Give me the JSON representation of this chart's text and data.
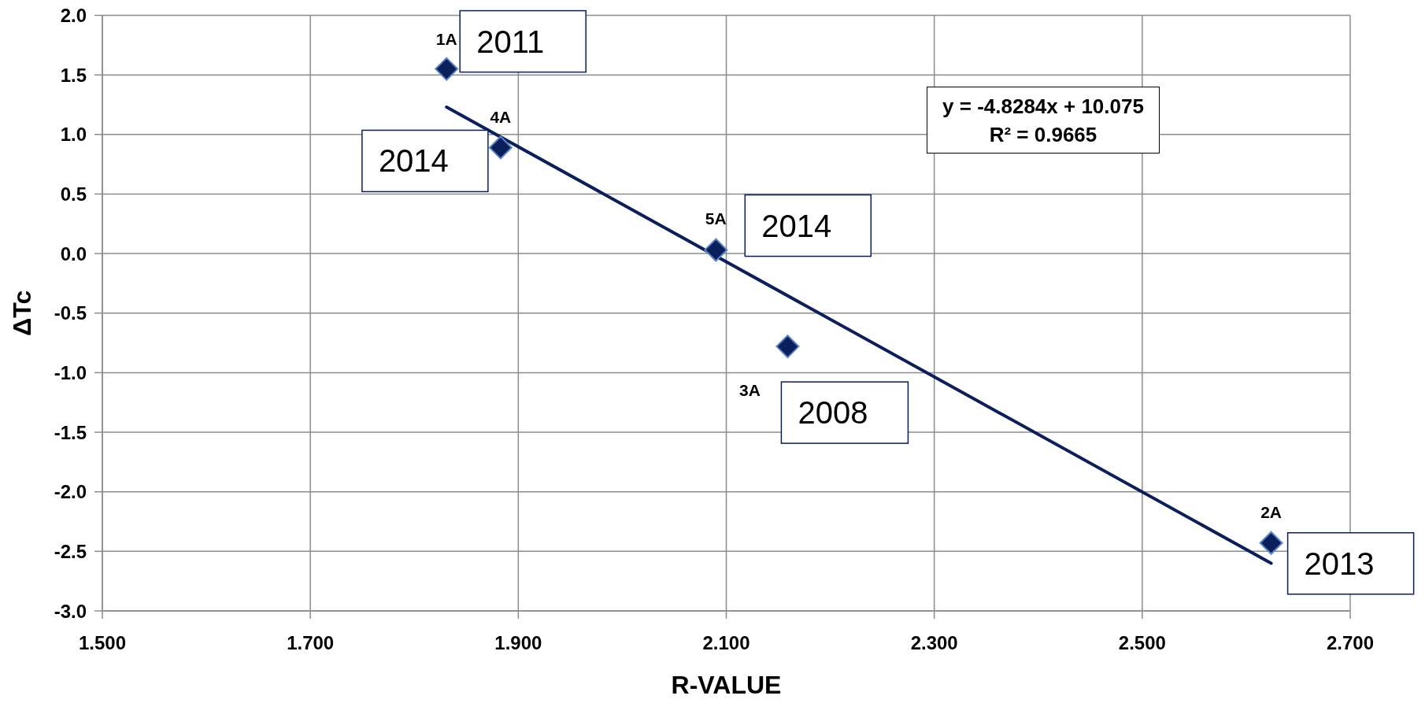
{
  "chart_data": {
    "type": "scatter",
    "xlabel": "R-VALUE",
    "ylabel": "ΔTc",
    "xlim": [
      1.5,
      2.7
    ],
    "xticks": [
      {
        "value": 1.5,
        "label": "1.500"
      },
      {
        "value": 1.7,
        "label": "1.700"
      },
      {
        "value": 1.9,
        "label": "1.900"
      },
      {
        "value": 2.1,
        "label": "2.100"
      },
      {
        "value": 2.3,
        "label": "2.300"
      },
      {
        "value": 2.5,
        "label": "2.500"
      },
      {
        "value": 2.7,
        "label": "2.700"
      }
    ],
    "ylim": [
      -3,
      2
    ],
    "yticks": [
      {
        "value": -3,
        "label": "-3.0"
      },
      -2.5,
      {
        "value": -2,
        "label": "-2.0"
      },
      -1.5,
      {
        "value": -1,
        "label": "-1.0"
      },
      -0.5,
      {
        "value": 0,
        "label": "0.0"
      },
      0.5,
      {
        "value": 1,
        "label": "1.0"
      },
      1.5,
      {
        "value": 2,
        "label": "2.0"
      }
    ],
    "grid": true,
    "marker": "diamond",
    "series": [
      {
        "color": "#0a1f5c",
        "x": [
          1.831,
          2.624,
          2.159,
          1.883,
          2.09
        ],
        "values": [
          1.55,
          -2.43,
          -0.78,
          0.89,
          0.03
        ]
      },
      {
        "type": "line",
        "color": "#0a1f5c",
        "x": [
          1.831,
          2.624
        ],
        "values": [
          1.23,
          -2.6
        ],
        "marker": "none",
        "line_style": "solid"
      }
    ],
    "annotations": [
      "y = -4.8284x + 10.075",
      "R² = 0.9665",
      {
        "text": "1A",
        "x": 1.831,
        "y": 1.55
      },
      {
        "text": "2011",
        "x": 1.831,
        "y": 1.55
      },
      {
        "text": "2A",
        "x": 2.624,
        "y": -2.43
      },
      {
        "text": "2013",
        "x": 2.624,
        "y": -2.43
      },
      {
        "text": "3A",
        "x": 2.159,
        "y": -0.78
      },
      {
        "text": "2008",
        "x": 2.159,
        "y": -0.78
      },
      {
        "text": "4A",
        "x": 1.883,
        "y": 0.89
      },
      {
        "text": "2014",
        "x": 1.883,
        "y": 0.89
      },
      {
        "text": "5A",
        "x": 2.09,
        "y": 0.03
      },
      {
        "text": "2014",
        "x": 2.09,
        "y": 0.03
      }
    ]
  }
}
